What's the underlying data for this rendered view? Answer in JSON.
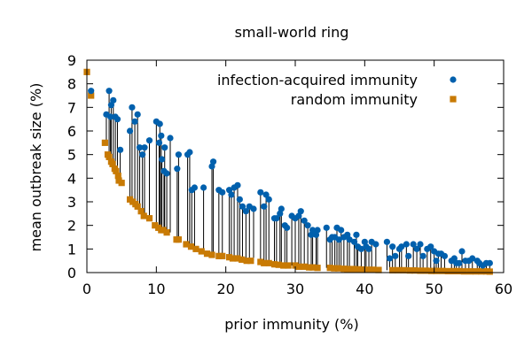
{
  "chart_data": {
    "type": "scatter",
    "title": "small-world ring",
    "xlabel": "prior immunity (%)",
    "ylabel": "mean outbreak size (%)",
    "xlim": [
      0,
      60
    ],
    "ylim": [
      0,
      9
    ],
    "xticks": [
      "0",
      "10",
      "20",
      "30",
      "40",
      "50",
      "60"
    ],
    "yticks": [
      "0",
      "1",
      "2",
      "3",
      "4",
      "5",
      "6",
      "7",
      "8",
      "9"
    ],
    "legend_position": "top-right",
    "grid": false,
    "series": [
      {
        "name": "infection-acquired immunity",
        "color": "#0060ad",
        "marker": "circle",
        "points": [
          [
            0.6,
            7.7
          ],
          [
            3.2,
            7.7
          ],
          [
            3.5,
            7.1
          ],
          [
            3.8,
            7.3
          ],
          [
            3.4,
            6.6
          ],
          [
            4.1,
            6.6
          ],
          [
            4.4,
            6.5
          ],
          [
            2.8,
            6.7
          ],
          [
            4.8,
            5.2
          ],
          [
            6.5,
            7.0
          ],
          [
            6.2,
            6.0
          ],
          [
            6.9,
            6.4
          ],
          [
            7.3,
            6.7
          ],
          [
            7.6,
            5.3
          ],
          [
            8.3,
            5.3
          ],
          [
            8.0,
            5.0
          ],
          [
            9.0,
            5.6
          ],
          [
            10.0,
            6.4
          ],
          [
            10.5,
            6.3
          ],
          [
            10.7,
            5.8
          ],
          [
            10.4,
            5.5
          ],
          [
            11.2,
            5.3
          ],
          [
            10.8,
            4.8
          ],
          [
            11.1,
            4.3
          ],
          [
            11.5,
            4.2
          ],
          [
            12.0,
            5.7
          ],
          [
            13.2,
            5.0
          ],
          [
            13.0,
            4.4
          ],
          [
            14.5,
            5.0
          ],
          [
            14.8,
            5.1
          ],
          [
            15.1,
            3.5
          ],
          [
            15.5,
            3.6
          ],
          [
            16.8,
            3.6
          ],
          [
            18.2,
            4.7
          ],
          [
            18.0,
            4.5
          ],
          [
            19.0,
            3.5
          ],
          [
            19.5,
            3.4
          ],
          [
            20.5,
            3.5
          ],
          [
            20.8,
            3.3
          ],
          [
            21.2,
            3.6
          ],
          [
            21.7,
            3.7
          ],
          [
            22.0,
            3.1
          ],
          [
            22.4,
            2.8
          ],
          [
            22.9,
            2.6
          ],
          [
            23.4,
            2.8
          ],
          [
            24.0,
            2.7
          ],
          [
            25.0,
            3.4
          ],
          [
            25.5,
            2.8
          ],
          [
            25.8,
            3.3
          ],
          [
            26.2,
            3.1
          ],
          [
            27.0,
            2.3
          ],
          [
            27.3,
            2.3
          ],
          [
            27.8,
            2.5
          ],
          [
            28.0,
            2.7
          ],
          [
            28.5,
            2.0
          ],
          [
            28.8,
            1.9
          ],
          [
            29.5,
            2.4
          ],
          [
            30.0,
            2.3
          ],
          [
            30.5,
            2.4
          ],
          [
            30.8,
            2.6
          ],
          [
            31.3,
            2.2
          ],
          [
            31.8,
            2.0
          ],
          [
            32.3,
            1.6
          ],
          [
            32.5,
            1.8
          ],
          [
            33.0,
            1.6
          ],
          [
            33.2,
            1.8
          ],
          [
            34.5,
            1.9
          ],
          [
            35.0,
            1.4
          ],
          [
            35.3,
            1.5
          ],
          [
            35.7,
            1.5
          ],
          [
            36.0,
            1.9
          ],
          [
            36.3,
            1.4
          ],
          [
            36.6,
            1.8
          ],
          [
            37.0,
            1.5
          ],
          [
            37.5,
            1.6
          ],
          [
            37.8,
            1.4
          ],
          [
            38.5,
            1.3
          ],
          [
            38.8,
            1.6
          ],
          [
            39.0,
            1.1
          ],
          [
            39.5,
            1.0
          ],
          [
            40.0,
            1.3
          ],
          [
            40.2,
            1.1
          ],
          [
            40.6,
            1.0
          ],
          [
            41.0,
            1.3
          ],
          [
            41.6,
            1.2
          ],
          [
            43.2,
            1.3
          ],
          [
            43.6,
            0.6
          ],
          [
            44.0,
            1.1
          ],
          [
            44.4,
            0.7
          ],
          [
            45.0,
            1.0
          ],
          [
            45.3,
            1.1
          ],
          [
            46.0,
            1.2
          ],
          [
            46.3,
            0.7
          ],
          [
            47.0,
            1.2
          ],
          [
            47.5,
            1.0
          ],
          [
            48.0,
            1.2
          ],
          [
            48.4,
            0.7
          ],
          [
            49.0,
            1.0
          ],
          [
            49.5,
            1.1
          ],
          [
            50.0,
            0.9
          ],
          [
            50.3,
            0.5
          ],
          [
            50.6,
            0.8
          ],
          [
            51.0,
            0.8
          ],
          [
            51.5,
            0.7
          ],
          [
            52.5,
            0.5
          ],
          [
            52.9,
            0.6
          ],
          [
            53.2,
            0.4
          ],
          [
            53.6,
            0.4
          ],
          [
            54.0,
            0.9
          ],
          [
            54.5,
            0.5
          ],
          [
            55.0,
            0.5
          ],
          [
            55.5,
            0.6
          ],
          [
            56.2,
            0.5
          ],
          [
            56.5,
            0.4
          ],
          [
            57.0,
            0.3
          ],
          [
            57.5,
            0.4
          ],
          [
            58.0,
            0.4
          ]
        ]
      },
      {
        "name": "random immunity",
        "color": "#c87a04",
        "marker": "square",
        "points": [
          [
            0.0,
            8.5
          ],
          [
            0.6,
            7.5
          ],
          [
            2.6,
            5.5
          ],
          [
            3.0,
            5.0
          ],
          [
            3.2,
            4.9
          ],
          [
            3.5,
            4.7
          ],
          [
            3.7,
            4.6
          ],
          [
            4.0,
            4.4
          ],
          [
            4.2,
            4.3
          ],
          [
            4.5,
            4.1
          ],
          [
            4.6,
            3.9
          ],
          [
            5.0,
            3.8
          ],
          [
            6.2,
            3.1
          ],
          [
            6.6,
            3.0
          ],
          [
            7.0,
            2.9
          ],
          [
            7.3,
            2.8
          ],
          [
            7.8,
            2.6
          ],
          [
            8.2,
            2.4
          ],
          [
            9.0,
            2.3
          ],
          [
            9.8,
            2.0
          ],
          [
            10.3,
            1.9
          ],
          [
            10.7,
            1.8
          ],
          [
            11.0,
            1.8
          ],
          [
            11.5,
            1.7
          ],
          [
            12.9,
            1.4
          ],
          [
            13.2,
            1.4
          ],
          [
            14.3,
            1.2
          ],
          [
            15.0,
            1.1
          ],
          [
            15.7,
            1.0
          ],
          [
            16.5,
            0.9
          ],
          [
            17.3,
            0.8
          ],
          [
            18.0,
            0.75
          ],
          [
            19.0,
            0.7
          ],
          [
            19.5,
            0.7
          ],
          [
            20.5,
            0.65
          ],
          [
            21.0,
            0.6
          ],
          [
            21.7,
            0.6
          ],
          [
            22.3,
            0.55
          ],
          [
            23.0,
            0.5
          ],
          [
            23.6,
            0.5
          ],
          [
            25.0,
            0.45
          ],
          [
            25.5,
            0.4
          ],
          [
            26.2,
            0.4
          ],
          [
            27.0,
            0.35
          ],
          [
            27.6,
            0.33
          ],
          [
            28.3,
            0.3
          ],
          [
            29.0,
            0.3
          ],
          [
            30.0,
            0.3
          ],
          [
            30.5,
            0.25
          ],
          [
            31.3,
            0.25
          ],
          [
            32.0,
            0.22
          ],
          [
            32.5,
            0.22
          ],
          [
            33.2,
            0.2
          ],
          [
            35.0,
            0.2
          ],
          [
            35.6,
            0.18
          ],
          [
            36.2,
            0.18
          ],
          [
            37.0,
            0.16
          ],
          [
            37.5,
            0.15
          ],
          [
            38.3,
            0.15
          ],
          [
            39.0,
            0.14
          ],
          [
            39.8,
            0.13
          ],
          [
            40.5,
            0.12
          ],
          [
            41.2,
            0.12
          ],
          [
            42.0,
            0.11
          ],
          [
            44.0,
            0.1
          ],
          [
            44.8,
            0.1
          ],
          [
            45.6,
            0.1
          ],
          [
            46.5,
            0.09
          ],
          [
            47.2,
            0.09
          ],
          [
            48.0,
            0.08
          ],
          [
            48.8,
            0.08
          ],
          [
            49.6,
            0.07
          ],
          [
            50.3,
            0.07
          ],
          [
            51.2,
            0.07
          ],
          [
            52.0,
            0.06
          ],
          [
            52.8,
            0.06
          ],
          [
            53.5,
            0.06
          ],
          [
            54.3,
            0.05
          ],
          [
            55.2,
            0.05
          ],
          [
            56.0,
            0.05
          ],
          [
            56.8,
            0.05
          ],
          [
            57.5,
            0.05
          ],
          [
            58.0,
            0.04
          ]
        ]
      }
    ]
  }
}
